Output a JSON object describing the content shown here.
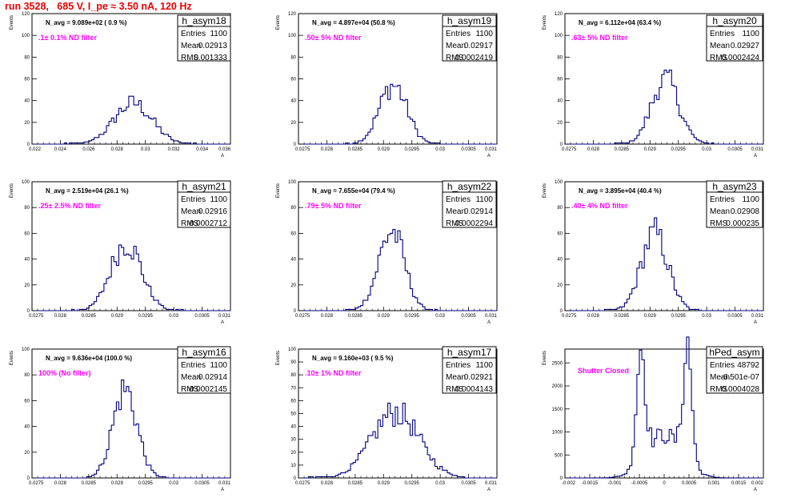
{
  "title": "run 3528,   685 V, I_pe ≈ 3.50 nA, 120 Hz",
  "colors": {
    "title": "#ee0000",
    "histogram": "#000080",
    "annotation": "#ff00ff"
  },
  "chart_data": [
    {
      "type": "histogram",
      "name": "h_asym18",
      "navg": "N_avg = 9.089e+02 ( 0.9 %)",
      "filter": ".1± 0.1% ND filter",
      "stats": {
        "entries": "1100",
        "mean": "0.02913",
        "rms": "0.001333"
      },
      "xlim": [
        0.022,
        0.036
      ],
      "xticks": [
        "0.022",
        "0.024",
        "0.026",
        "0.028",
        "0.03",
        "0.032",
        "0.034",
        "0.036"
      ],
      "ylim": [
        0,
        120
      ],
      "yticks": [
        "0",
        "20",
        "40",
        "60",
        "80",
        "100",
        "120"
      ],
      "ylabel": "Events",
      "xlabel": "A",
      "mean": 0.02913,
      "sigma": 0.001333,
      "peak": 43
    },
    {
      "type": "histogram",
      "name": "h_asym19",
      "navg": "N_avg = 4.897e+04 (50.8 %)",
      "filter": ".50± 5% ND filter",
      "stats": {
        "entries": "1100",
        "mean": "0.02917",
        "rms": "0.0002419"
      },
      "xlim": [
        0.0275,
        0.031
      ],
      "xticks": [
        "0.0275",
        "0.028",
        "0.0285",
        "0.029",
        "0.0295",
        "0.03",
        "0.0305",
        "0.031"
      ],
      "ylim": [
        0,
        120
      ],
      "yticks": [
        "0",
        "20",
        "40",
        "60",
        "80",
        "100",
        "120"
      ],
      "ylabel": "Events",
      "xlabel": "A",
      "mean": 0.02917,
      "sigma": 0.0002419,
      "peak": 62
    },
    {
      "type": "histogram",
      "name": "h_asym20",
      "navg": "N_avg = 6.112e+04 (63.4 %)",
      "filter": ".63± 5% ND filter",
      "stats": {
        "entries": "1100",
        "mean": "0.02927",
        "rms": "0.0002424"
      },
      "xlim": [
        0.0275,
        0.031
      ],
      "xticks": [
        "0.0275",
        "0.028",
        "0.0285",
        "0.029",
        "0.0295",
        "0.03",
        "0.0305",
        "0.031"
      ],
      "ylim": [
        0,
        120
      ],
      "yticks": [
        "0",
        "20",
        "40",
        "60",
        "80",
        "100",
        "120"
      ],
      "ylabel": "Events",
      "xlabel": "A",
      "mean": 0.02927,
      "sigma": 0.0002424,
      "peak": 68
    },
    {
      "type": "histogram",
      "name": "h_asym21",
      "navg": "N_avg = 2.519e+04 (26.1 %)",
      "filter": ".25± 2.5% ND filter",
      "stats": {
        "entries": "1100",
        "mean": "0.02916",
        "rms": "0.0002712"
      },
      "xlim": [
        0.0275,
        0.031
      ],
      "xticks": [
        "0.0275",
        "0.028",
        "0.0285",
        "0.029",
        "0.0295",
        "0.03",
        "0.0305",
        "0.031"
      ],
      "ylim": [
        0,
        100
      ],
      "yticks": [
        "0",
        "20",
        "40",
        "60",
        "80",
        "100"
      ],
      "ylabel": "Events",
      "xlabel": "A",
      "mean": 0.02916,
      "sigma": 0.0002712,
      "peak": 60
    },
    {
      "type": "histogram",
      "name": "h_asym22",
      "navg": "N_avg = 7.655e+04 (79.4 %)",
      "filter": ".79± 5% ND filter",
      "stats": {
        "entries": "1100",
        "mean": "0.02914",
        "rms": "0.0002294"
      },
      "xlim": [
        0.0275,
        0.031
      ],
      "xticks": [
        "0.0275",
        "0.028",
        "0.0285",
        "0.029",
        "0.0295",
        "0.03",
        "0.0305",
        "0.031"
      ],
      "ylim": [
        0,
        100
      ],
      "yticks": [
        "0",
        "20",
        "40",
        "60",
        "80",
        "100"
      ],
      "ylabel": "Events",
      "xlabel": "A",
      "mean": 0.02914,
      "sigma": 0.0002294,
      "peak": 70
    },
    {
      "type": "histogram",
      "name": "h_asym23",
      "navg": "N_avg = 3.895e+04 (40.4 %)",
      "filter": ".40± 4% ND filter",
      "stats": {
        "entries": "1100",
        "mean": "0.02908",
        "rms": "0.000235"
      },
      "xlim": [
        0.0275,
        0.031
      ],
      "xticks": [
        "0.0275",
        "0.028",
        "0.0285",
        "0.029",
        "0.0295",
        "0.03",
        "0.0305",
        "0.031"
      ],
      "ylim": [
        0,
        100
      ],
      "yticks": [
        "0",
        "20",
        "40",
        "60",
        "80",
        "100"
      ],
      "ylabel": "Events",
      "xlabel": "A",
      "mean": 0.02908,
      "sigma": 0.000235,
      "peak": 68
    },
    {
      "type": "histogram",
      "name": "h_asym16",
      "navg": "N_avg = 9.636e+04 (100.0 %)",
      "filter": "100% (No filter)",
      "stats": {
        "entries": "1100",
        "mean": "0.02914",
        "rms": "0.0002145"
      },
      "xlim": [
        0.0275,
        0.031
      ],
      "xticks": [
        "0.0275",
        "0.028",
        "0.0285",
        "0.029",
        "0.0295",
        "0.03",
        "0.0305",
        "0.031"
      ],
      "ylim": [
        0,
        100
      ],
      "yticks": [
        "0",
        "20",
        "40",
        "60",
        "80",
        "100"
      ],
      "ylabel": "Events",
      "xlabel": "A",
      "mean": 0.02914,
      "sigma": 0.0002145,
      "peak": 78
    },
    {
      "type": "histogram",
      "name": "h_asym17",
      "navg": "N_avg = 9.160e+03 ( 9.5 %)",
      "filter": ".10± 1% ND filter",
      "stats": {
        "entries": "1100",
        "mean": "0.02921",
        "rms": "0.0004143"
      },
      "xlim": [
        0.0275,
        0.031
      ],
      "xticks": [
        "0.0275",
        "0.028",
        "0.0285",
        "0.029",
        "0.0295",
        "0.03",
        "0.0305",
        "0.031"
      ],
      "ylim": [
        0,
        100
      ],
      "yticks": [
        "0",
        "10",
        "20",
        "30",
        "40",
        "50",
        "60",
        "70",
        "80",
        "90",
        "100"
      ],
      "ylabel": "Events",
      "xlabel": "A",
      "mean": 0.02921,
      "sigma": 0.0004143,
      "peak": 58
    },
    {
      "type": "histogram",
      "name": "hPed_asym",
      "navg": "",
      "filter": "Shutter Closed",
      "stats": {
        "entries": "48792",
        "mean": "-6.501e-07",
        "rms": "0.0004028"
      },
      "xlim": [
        -0.002,
        0.002
      ],
      "xticks": [
        "-0.002",
        "-0.0015",
        "-0.001",
        "-0.0005",
        "0",
        "0.0005",
        "0.001",
        "0.0015",
        "0.002"
      ],
      "ylim": [
        0,
        2800
      ],
      "yticks": [
        "0",
        "500",
        "1000",
        "1500",
        "2000",
        "2500"
      ],
      "ylabel": "Events",
      "xlabel": "A",
      "mean": -6.501e-07,
      "sigma": 0.0004028,
      "peak": 2480,
      "bimodal": true
    }
  ]
}
